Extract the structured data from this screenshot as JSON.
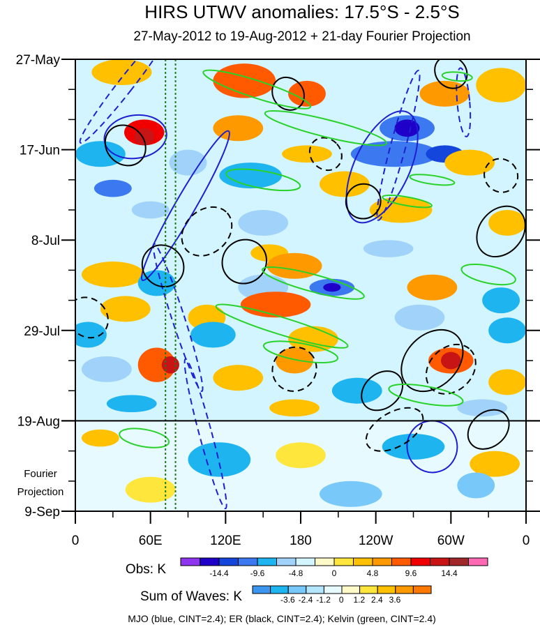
{
  "chart_data": {
    "type": "heatmap",
    "title": "HIRS UTWV anomalies: 17.5°S - 2.5°S",
    "subtitle": "27-May-2012 to 19-Aug-2012 + 21-day Fourier Projection",
    "x_ticks": [
      "0",
      "60E",
      "120E",
      "180",
      "120W",
      "60W",
      "0"
    ],
    "x_tick_degrees": [
      0,
      60,
      120,
      180,
      240,
      300,
      360
    ],
    "xlim_degrees": [
      0,
      360
    ],
    "y_ticks": [
      "27-May",
      "17-Jun",
      "8-Jul",
      "29-Jul",
      "19-Aug",
      "9-Sep"
    ],
    "y_tick_days": [
      0,
      21,
      42,
      63,
      84,
      105
    ],
    "ylim_days": [
      0,
      105
    ],
    "observation_end_day": 84,
    "projection_label": [
      "Fourier",
      "Projection"
    ],
    "reference_longitudes_degrees": [
      72,
      80
    ],
    "obs_colorbar": {
      "label": "Obs: K",
      "tick_labels": [
        "-14.4",
        "-9.6",
        "-4.8",
        "0",
        "4.8",
        "9.6",
        "14.4"
      ],
      "colors": [
        "#8f35f0",
        "#1e00c8",
        "#1446dc",
        "#3c78f0",
        "#1eb4f0",
        "#a0d2fa",
        "#d2f5ff",
        "#fffac8",
        "#ffe63c",
        "#ffc000",
        "#ff9900",
        "#ff5a00",
        "#f00000",
        "#c81414",
        "#a02828",
        "#ff69b4"
      ]
    },
    "waves_colorbar": {
      "label": "Sum of Waves: K",
      "tick_labels": [
        "-3.6",
        "-2.4",
        "-1.2",
        "0",
        "1.2",
        "2.4",
        "3.6"
      ],
      "colors": [
        "#3c96f0",
        "#1eb4f0",
        "#78c8fa",
        "#b4e6ff",
        "#e6faff",
        "#fffac8",
        "#ffe63c",
        "#ffc000",
        "#ff9900",
        "#ff7800"
      ]
    },
    "footer": "MJO (blue, CINT=2.4); ER (black, CINT=2.4); Kelvin (green, CINT=2.4)",
    "contour_colors": {
      "MJO": "#1e1ed2",
      "ER": "#000000",
      "Kelvin": "#28d228"
    },
    "anomaly_blobs": [
      {
        "lon": 37,
        "day": 3,
        "rx": 24,
        "ry": 3,
        "level": 9
      },
      {
        "lon": 135,
        "day": 5,
        "rx": 25,
        "ry": 4,
        "level": 11
      },
      {
        "lon": 185,
        "day": 8,
        "rx": 15,
        "ry": 3,
        "level": 11
      },
      {
        "lon": 295,
        "day": 8,
        "rx": 20,
        "ry": 3,
        "level": 10
      },
      {
        "lon": 340,
        "day": 6,
        "rx": 20,
        "ry": 4,
        "level": 9
      },
      {
        "lon": 55,
        "day": 17,
        "rx": 16,
        "ry": 3,
        "level": 12
      },
      {
        "lon": 55,
        "day": 18,
        "rx": 8,
        "ry": 2,
        "level": 13
      },
      {
        "lon": 130,
        "day": 16,
        "rx": 20,
        "ry": 3,
        "level": 10
      },
      {
        "lon": 265,
        "day": 16,
        "rx": 22,
        "ry": 3,
        "level": 3
      },
      {
        "lon": 265,
        "day": 16,
        "rx": 10,
        "ry": 2,
        "level": 1
      },
      {
        "lon": 20,
        "day": 22,
        "rx": 20,
        "ry": 3,
        "level": 4
      },
      {
        "lon": 90,
        "day": 24,
        "rx": 15,
        "ry": 3,
        "level": 5
      },
      {
        "lon": 185,
        "day": 22,
        "rx": 20,
        "ry": 2,
        "level": 9
      },
      {
        "lon": 255,
        "day": 22,
        "rx": 35,
        "ry": 3,
        "level": 3
      },
      {
        "lon": 295,
        "day": 22,
        "rx": 15,
        "ry": 2,
        "level": 2
      },
      {
        "lon": 315,
        "day": 24,
        "rx": 20,
        "ry": 3,
        "level": 9
      },
      {
        "lon": 140,
        "day": 27,
        "rx": 25,
        "ry": 3,
        "level": 4
      },
      {
        "lon": 215,
        "day": 29,
        "rx": 20,
        "ry": 3,
        "level": 9
      },
      {
        "lon": 30,
        "day": 30,
        "rx": 15,
        "ry": 2,
        "level": 3
      },
      {
        "lon": 60,
        "day": 35,
        "rx": 15,
        "ry": 2,
        "level": 5
      },
      {
        "lon": 150,
        "day": 38,
        "rx": 20,
        "ry": 3,
        "level": 5
      },
      {
        "lon": 260,
        "day": 35,
        "rx": 25,
        "ry": 3,
        "level": 9
      },
      {
        "lon": 345,
        "day": 38,
        "rx": 15,
        "ry": 3,
        "level": 9
      },
      {
        "lon": 155,
        "day": 45,
        "rx": 15,
        "ry": 2,
        "level": 9
      },
      {
        "lon": 250,
        "day": 44,
        "rx": 20,
        "ry": 2,
        "level": 5
      },
      {
        "lon": 30,
        "day": 50,
        "rx": 25,
        "ry": 3,
        "level": 9
      },
      {
        "lon": 175,
        "day": 48,
        "rx": 22,
        "ry": 3,
        "level": 10
      },
      {
        "lon": 65,
        "day": 52,
        "rx": 15,
        "ry": 3,
        "level": 4
      },
      {
        "lon": 150,
        "day": 53,
        "rx": 20,
        "ry": 3,
        "level": 5
      },
      {
        "lon": 205,
        "day": 53,
        "rx": 18,
        "ry": 2,
        "level": 3
      },
      {
        "lon": 205,
        "day": 53,
        "rx": 7,
        "ry": 1,
        "level": 1
      },
      {
        "lon": 285,
        "day": 53,
        "rx": 20,
        "ry": 3,
        "level": 10
      },
      {
        "lon": 340,
        "day": 56,
        "rx": 15,
        "ry": 3,
        "level": 4
      },
      {
        "lon": 40,
        "day": 58,
        "rx": 20,
        "ry": 3,
        "level": 9
      },
      {
        "lon": 160,
        "day": 57,
        "rx": 28,
        "ry": 3,
        "level": 11
      },
      {
        "lon": 105,
        "day": 60,
        "rx": 15,
        "ry": 3,
        "level": 9
      },
      {
        "lon": 275,
        "day": 60,
        "rx": 20,
        "ry": 3,
        "level": 5
      },
      {
        "lon": 10,
        "day": 64,
        "rx": 15,
        "ry": 3,
        "level": 4
      },
      {
        "lon": 110,
        "day": 64,
        "rx": 18,
        "ry": 3,
        "level": 4
      },
      {
        "lon": 190,
        "day": 65,
        "rx": 20,
        "ry": 3,
        "level": 9
      },
      {
        "lon": 345,
        "day": 63,
        "rx": 15,
        "ry": 3,
        "level": 4
      },
      {
        "lon": 65,
        "day": 71,
        "rx": 15,
        "ry": 4,
        "level": 11
      },
      {
        "lon": 76,
        "day": 71,
        "rx": 7,
        "ry": 2,
        "level": 13
      },
      {
        "lon": 175,
        "day": 70,
        "rx": 15,
        "ry": 3,
        "level": 10
      },
      {
        "lon": 300,
        "day": 70,
        "rx": 18,
        "ry": 3,
        "level": 11
      },
      {
        "lon": 300,
        "day": 70,
        "rx": 8,
        "ry": 2,
        "level": 13
      },
      {
        "lon": 25,
        "day": 72,
        "rx": 20,
        "ry": 3,
        "level": 5
      },
      {
        "lon": 130,
        "day": 74,
        "rx": 20,
        "ry": 3,
        "level": 9
      },
      {
        "lon": 225,
        "day": 77,
        "rx": 20,
        "ry": 3,
        "level": 4
      },
      {
        "lon": 345,
        "day": 75,
        "rx": 15,
        "ry": 3,
        "level": 9
      },
      {
        "lon": 45,
        "day": 80,
        "rx": 20,
        "ry": 2,
        "level": 4
      },
      {
        "lon": 175,
        "day": 81,
        "rx": 20,
        "ry": 2,
        "level": 9
      },
      {
        "lon": 325,
        "day": 81,
        "rx": 20,
        "ry": 2,
        "level": 5
      }
    ],
    "projection_blobs": [
      {
        "lon": 115,
        "day": 93,
        "rx": 25,
        "ry": 4,
        "level": 1
      },
      {
        "lon": 180,
        "day": 92,
        "rx": 20,
        "ry": 3,
        "level": 6
      },
      {
        "lon": 270,
        "day": 90,
        "rx": 25,
        "ry": 3,
        "level": 1
      },
      {
        "lon": 335,
        "day": 94,
        "rx": 20,
        "ry": 3,
        "level": 7
      },
      {
        "lon": 60,
        "day": 100,
        "rx": 20,
        "ry": 3,
        "level": 6
      },
      {
        "lon": 220,
        "day": 101,
        "rx": 25,
        "ry": 3,
        "level": 2
      },
      {
        "lon": 320,
        "day": 99,
        "rx": 15,
        "ry": 3,
        "level": 2
      },
      {
        "lon": 20,
        "day": 88,
        "rx": 15,
        "ry": 2,
        "level": 7
      }
    ],
    "mjo_contours": [
      {
        "lon": 40,
        "day": 6,
        "rx": 6,
        "ry": 17,
        "rot": 38,
        "dash": true
      },
      {
        "lon": 48,
        "day": 18,
        "rx": 25,
        "ry": 5,
        "rot": -8,
        "dash": false
      },
      {
        "lon": 88,
        "day": 34,
        "rx": 8,
        "ry": 20,
        "rot": 30,
        "dash": false
      },
      {
        "lon": 82,
        "day": 60,
        "rx": 5,
        "ry": 18,
        "rot": -18,
        "dash": true
      },
      {
        "lon": 104,
        "day": 87,
        "rx": 5,
        "ry": 18,
        "rot": -15,
        "dash": true
      },
      {
        "lon": 245,
        "day": 25,
        "rx": 22,
        "ry": 14,
        "rot": 25,
        "dash": false
      },
      {
        "lon": 258,
        "day": 20,
        "rx": 6,
        "ry": 18,
        "rot": 15,
        "dash": true
      },
      {
        "lon": 285,
        "day": 90,
        "rx": 20,
        "ry": 6,
        "rot": -10,
        "dash": false
      },
      {
        "lon": 310,
        "day": 10,
        "rx": 5,
        "ry": 8,
        "rot": -5,
        "dash": true
      }
    ],
    "er_contours": [
      {
        "lon": 40,
        "day": 20,
        "rx": 15,
        "ry": 5,
        "rot": -45,
        "dash": false
      },
      {
        "lon": 170,
        "day": 8,
        "rx": 12,
        "ry": 4,
        "rot": -40,
        "dash": false
      },
      {
        "lon": 105,
        "day": 40,
        "rx": 22,
        "ry": 5,
        "rot": -42,
        "dash": true
      },
      {
        "lon": 135,
        "day": 47,
        "rx": 18,
        "ry": 5,
        "rot": -40,
        "dash": false
      },
      {
        "lon": 70,
        "day": 48,
        "rx": 16,
        "ry": 5,
        "rot": -45,
        "dash": false
      },
      {
        "lon": 10,
        "day": 60,
        "rx": 15,
        "ry": 5,
        "rot": -45,
        "dash": true
      },
      {
        "lon": 175,
        "day": 72,
        "rx": 18,
        "ry": 5,
        "rot": -45,
        "dash": true
      },
      {
        "lon": 245,
        "day": 77,
        "rx": 18,
        "ry": 4,
        "rot": -40,
        "dash": false
      },
      {
        "lon": 285,
        "day": 70,
        "rx": 28,
        "ry": 6,
        "rot": -45,
        "dash": false
      },
      {
        "lon": 300,
        "day": 72,
        "rx": 22,
        "ry": 5,
        "rot": -45,
        "dash": true
      },
      {
        "lon": 340,
        "day": 40,
        "rx": 22,
        "ry": 5,
        "rot": -50,
        "dash": false
      },
      {
        "lon": 255,
        "day": 86,
        "rx": 25,
        "ry": 4,
        "rot": -30,
        "dash": true
      },
      {
        "lon": 330,
        "day": 86,
        "rx": 18,
        "ry": 4,
        "rot": -40,
        "dash": false
      },
      {
        "lon": 230,
        "day": 33,
        "rx": 14,
        "ry": 4,
        "rot": -45,
        "dash": false
      },
      {
        "lon": 340,
        "day": 27,
        "rx": 13,
        "ry": 4,
        "rot": -45,
        "dash": true
      },
      {
        "lon": 300,
        "day": 3,
        "rx": 12,
        "ry": 4,
        "rot": -45,
        "dash": false
      },
      {
        "lon": 200,
        "day": 22,
        "rx": 12,
        "ry": 4,
        "rot": -42,
        "dash": true
      }
    ],
    "kelvin_contours": [
      {
        "lon": 145,
        "day": 7,
        "rx": 45,
        "ry": 2,
        "rot": 18,
        "dash": false
      },
      {
        "lon": 200,
        "day": 16,
        "rx": 50,
        "ry": 2,
        "rot": 14,
        "dash": false
      },
      {
        "lon": 150,
        "day": 28,
        "rx": 30,
        "ry": 2,
        "rot": 10,
        "dash": false
      },
      {
        "lon": 190,
        "day": 52,
        "rx": 42,
        "ry": 2,
        "rot": 15,
        "dash": false
      },
      {
        "lon": 330,
        "day": 50,
        "rx": 22,
        "ry": 2,
        "rot": 12,
        "dash": false
      },
      {
        "lon": 165,
        "day": 62,
        "rx": 55,
        "ry": 2,
        "rot": 17,
        "dash": false
      },
      {
        "lon": 180,
        "day": 68,
        "rx": 30,
        "ry": 2,
        "rot": 10,
        "dash": false
      },
      {
        "lon": 280,
        "day": 78,
        "rx": 30,
        "ry": 2,
        "rot": 10,
        "dash": false
      },
      {
        "lon": 55,
        "day": 88,
        "rx": 20,
        "ry": 2,
        "rot": 10,
        "dash": false
      },
      {
        "lon": 305,
        "day": 4,
        "rx": 12,
        "ry": 1,
        "rot": 5,
        "dash": false
      },
      {
        "lon": 285,
        "day": 28,
        "rx": 18,
        "ry": 1,
        "rot": 8,
        "dash": false
      },
      {
        "lon": 265,
        "day": 33,
        "rx": 20,
        "ry": 1,
        "rot": 10,
        "dash": false
      }
    ]
  }
}
